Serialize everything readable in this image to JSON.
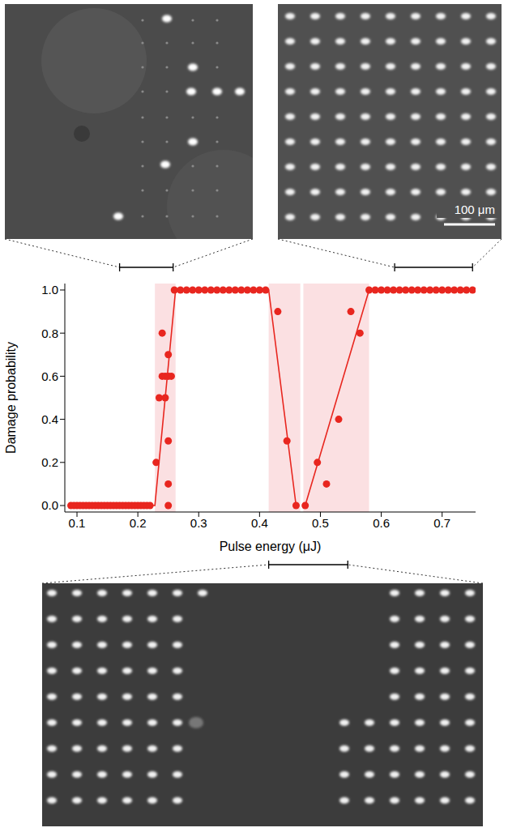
{
  "chart_data": {
    "type": "scatter",
    "xlabel": "Pulse energy (μJ)",
    "ylabel": "Damage probability",
    "color": "#e8261f",
    "marker": "circle",
    "x": [
      0.09,
      0.095,
      0.1,
      0.105,
      0.11,
      0.115,
      0.12,
      0.125,
      0.13,
      0.135,
      0.14,
      0.145,
      0.15,
      0.155,
      0.16,
      0.165,
      0.17,
      0.175,
      0.18,
      0.185,
      0.19,
      0.195,
      0.2,
      0.205,
      0.21,
      0.215,
      0.22,
      0.23,
      0.235,
      0.24,
      0.24,
      0.245,
      0.245,
      0.25,
      0.25,
      0.25,
      0.25,
      0.25,
      0.255,
      0.26,
      0.27,
      0.28,
      0.29,
      0.3,
      0.31,
      0.32,
      0.33,
      0.34,
      0.35,
      0.36,
      0.37,
      0.38,
      0.39,
      0.4,
      0.41,
      0.43,
      0.445,
      0.46,
      0.475,
      0.495,
      0.51,
      0.53,
      0.55,
      0.565,
      0.58,
      0.59,
      0.6,
      0.61,
      0.62,
      0.63,
      0.64,
      0.65,
      0.66,
      0.67,
      0.68,
      0.69,
      0.7,
      0.71,
      0.72,
      0.73,
      0.74,
      0.75
    ],
    "values": [
      0,
      0,
      0,
      0,
      0,
      0,
      0,
      0,
      0,
      0,
      0,
      0,
      0,
      0,
      0,
      0,
      0,
      0,
      0,
      0,
      0,
      0,
      0,
      0,
      0,
      0,
      0,
      0.2,
      0.5,
      0.8,
      0.6,
      0.6,
      0.5,
      0.6,
      0.7,
      0.3,
      0.1,
      0,
      0.6,
      1,
      1,
      1,
      1,
      1,
      1,
      1,
      1,
      1,
      1,
      1,
      1,
      1,
      1,
      1,
      1,
      0.9,
      0.3,
      0,
      0,
      0.2,
      0.1,
      0.4,
      0.9,
      0.8,
      1,
      1,
      1,
      1,
      1,
      1,
      1,
      1,
      1,
      1,
      1,
      1,
      1,
      1,
      1,
      1,
      1,
      1
    ],
    "fit_lines": [
      {
        "x": [
          0.09,
          0.228,
          0.262,
          0.415,
          0.46
        ],
        "y": [
          0,
          0,
          1,
          1,
          0
        ]
      },
      {
        "x": [
          0.475,
          0.58,
          0.75
        ],
        "y": [
          0,
          1,
          1
        ]
      }
    ],
    "shaded_regions": [
      [
        0.228,
        0.262
      ],
      [
        0.415,
        0.467
      ],
      [
        0.472,
        0.58
      ]
    ],
    "brackets": [
      [
        0.17,
        0.258
      ],
      [
        0.415,
        0.545
      ],
      [
        0.622,
        0.75
      ]
    ],
    "xlim": [
      0.08,
      0.755
    ],
    "ylim": [
      -0.03,
      1.03
    ],
    "xticks": [
      0.1,
      0.2,
      0.3,
      0.4,
      0.5,
      0.6,
      0.7
    ],
    "yticks": [
      {
        "value": 0,
        "label": "0.0"
      },
      0.2,
      0.4,
      0.6,
      0.8,
      {
        "value": 1,
        "label": "1.0"
      }
    ],
    "scale_bar_label": "100 μm"
  }
}
